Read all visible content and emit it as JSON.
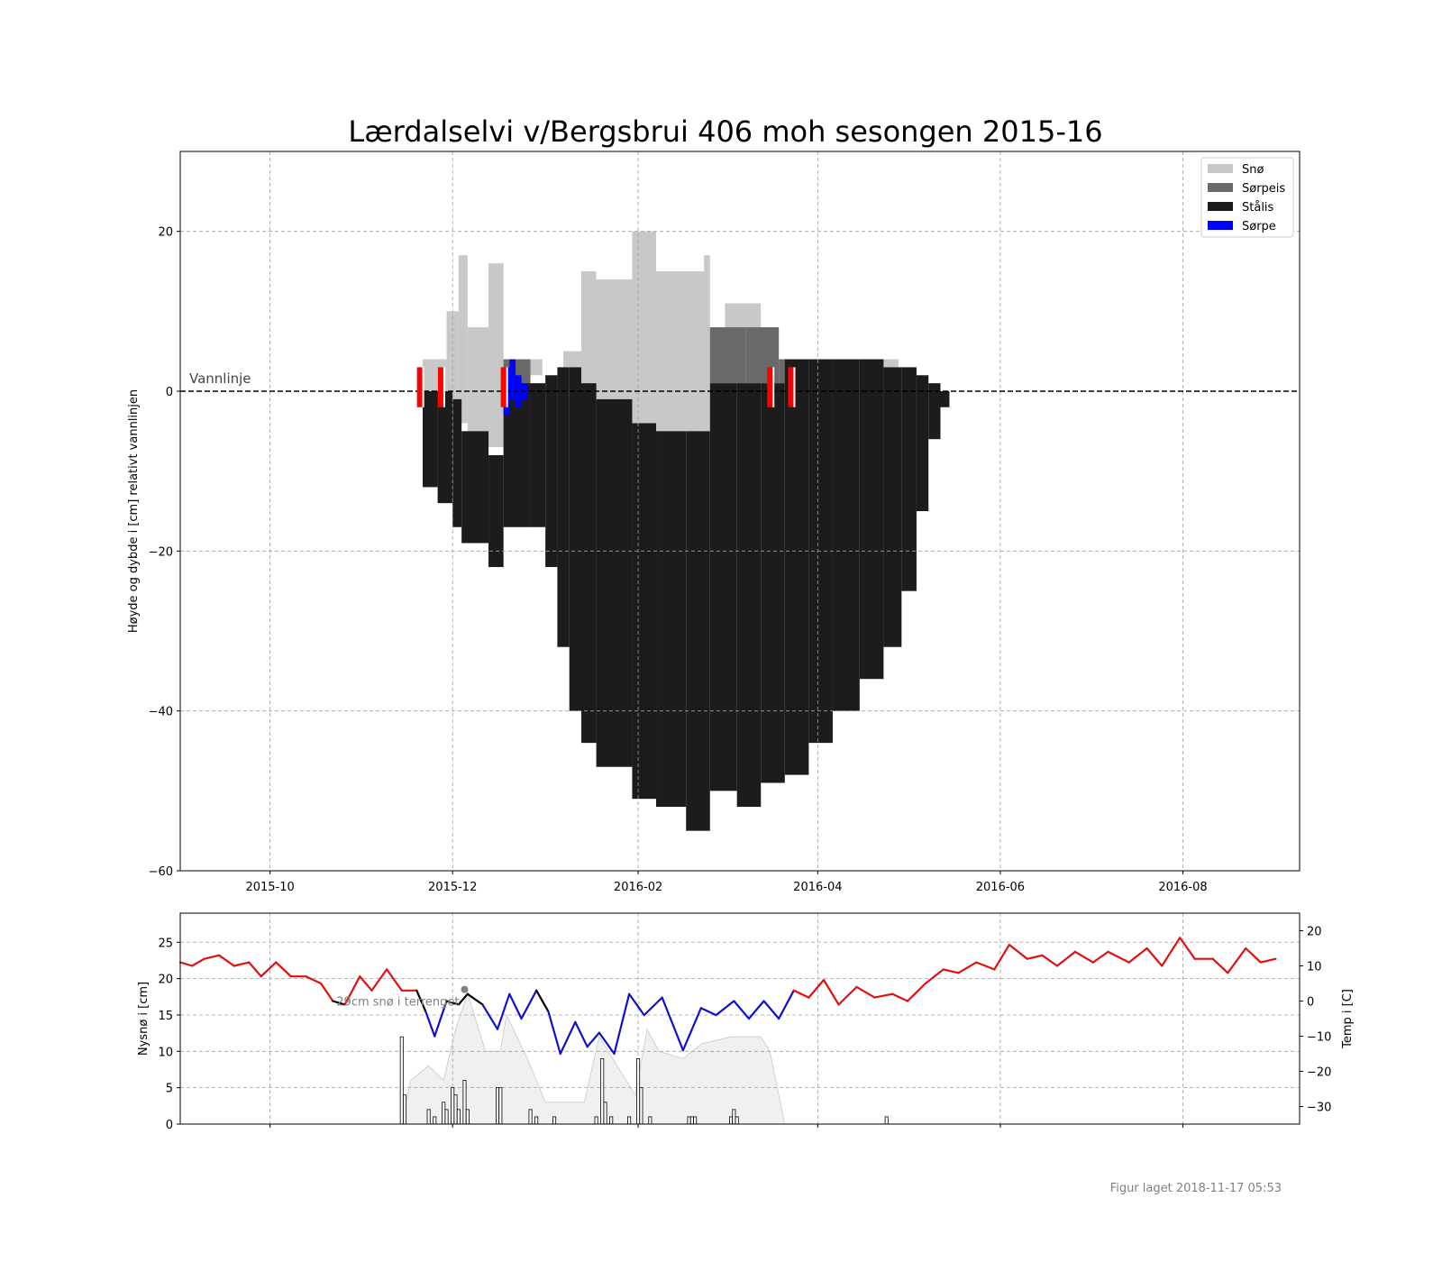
{
  "colors": {
    "sno": "#c8c8c8",
    "sorpeis": "#696969",
    "stalis": "#1c1c1c",
    "sorpe": "#0000ff",
    "obs_marker": "#ff0000",
    "temp_warm": "#e01010",
    "temp_cold": "#1010cc",
    "temp_zero": "#000000",
    "snow_depth_fill": "#f0f0f0",
    "grid": "#a0a0a0"
  },
  "chart_data": [
    {
      "type": "bar",
      "title": "Lærdalselvi v/Bergsbrui 406 moh sesongen 2015-16",
      "ylabel": "Høyde og dybde i [cm] relativt vannlinjen",
      "xlabel": "",
      "x_range": [
        "2015-09-01",
        "2016-09-09"
      ],
      "ylim": [
        -60,
        30
      ],
      "yticks": [
        20,
        0,
        -20,
        -40,
        -60
      ],
      "xtick_labels": [
        "2015-10",
        "2015-12",
        "2016-02",
        "2016-04",
        "2016-06",
        "2016-08"
      ],
      "xtick_dates": [
        "2015-10-01",
        "2015-12-01",
        "2016-02-01",
        "2016-04-01",
        "2016-06-01",
        "2016-08-01"
      ],
      "grid": true,
      "legend_position": "top-right",
      "legend": [
        "Snø",
        "Sørpeis",
        "Stålis",
        "Sørpe"
      ],
      "waterline": {
        "y": 0,
        "label": "Vannlinje"
      },
      "observation_dates": [
        "2015-11-20",
        "2015-11-27",
        "2015-12-18",
        "2016-03-16",
        "2016-03-23"
      ],
      "snow_layer": [
        {
          "from": "2015-11-21",
          "to": "2015-11-29",
          "bottom": 0,
          "top": 4
        },
        {
          "from": "2015-11-29",
          "to": "2015-12-03",
          "bottom": -1,
          "top": 10
        },
        {
          "from": "2015-12-03",
          "to": "2015-12-06",
          "bottom": -4,
          "top": 17
        },
        {
          "from": "2015-12-06",
          "to": "2015-12-13",
          "bottom": -5,
          "top": 8
        },
        {
          "from": "2015-12-13",
          "to": "2015-12-18",
          "bottom": -7,
          "top": 16
        },
        {
          "from": "2015-12-22",
          "to": "2015-12-31",
          "bottom": 2,
          "top": 4
        },
        {
          "from": "2016-01-07",
          "to": "2016-01-13",
          "bottom": 3,
          "top": 5
        },
        {
          "from": "2016-01-13",
          "to": "2016-01-18",
          "bottom": 1,
          "top": 15
        },
        {
          "from": "2016-01-18",
          "to": "2016-01-30",
          "bottom": -1,
          "top": 14
        },
        {
          "from": "2016-01-30",
          "to": "2016-02-07",
          "bottom": -4,
          "top": 20
        },
        {
          "from": "2016-02-07",
          "to": "2016-02-23",
          "bottom": -5,
          "top": 15
        },
        {
          "from": "2016-02-23",
          "to": "2016-02-25",
          "bottom": -5,
          "top": 17
        },
        {
          "from": "2016-03-01",
          "to": "2016-03-13",
          "bottom": 8,
          "top": 11
        },
        {
          "from": "2016-04-23",
          "to": "2016-04-28",
          "bottom": 3,
          "top": 4
        }
      ],
      "sorpeis_layer": [
        {
          "from": "2015-12-18",
          "to": "2015-12-27",
          "bottom": 1,
          "top": 4
        },
        {
          "from": "2016-02-25",
          "to": "2016-03-08",
          "bottom": 1,
          "top": 8
        },
        {
          "from": "2016-03-08",
          "to": "2016-03-19",
          "bottom": 1,
          "top": 8
        },
        {
          "from": "2016-03-19",
          "to": "2016-03-26",
          "bottom": 1,
          "top": 4
        }
      ],
      "stalis_layer": [
        {
          "from": "2015-11-21",
          "to": "2015-11-26",
          "bottom": -12,
          "top": 0
        },
        {
          "from": "2015-11-26",
          "to": "2015-12-01",
          "bottom": -14,
          "top": 0
        },
        {
          "from": "2015-12-01",
          "to": "2015-12-04",
          "bottom": -17,
          "top": -1
        },
        {
          "from": "2015-12-04",
          "to": "2015-12-13",
          "bottom": -19,
          "top": -5
        },
        {
          "from": "2015-12-13",
          "to": "2015-12-18",
          "bottom": -22,
          "top": -8
        },
        {
          "from": "2015-12-18",
          "to": "2015-12-27",
          "bottom": -17,
          "top": 1
        },
        {
          "from": "2015-12-27",
          "to": "2016-01-01",
          "bottom": -17,
          "top": 1
        },
        {
          "from": "2016-01-01",
          "to": "2016-01-05",
          "bottom": -22,
          "top": 2
        },
        {
          "from": "2016-01-05",
          "to": "2016-01-09",
          "bottom": -32,
          "top": 3
        },
        {
          "from": "2016-01-09",
          "to": "2016-01-13",
          "bottom": -40,
          "top": 3
        },
        {
          "from": "2016-01-13",
          "to": "2016-01-18",
          "bottom": -44,
          "top": 1
        },
        {
          "from": "2016-01-18",
          "to": "2016-01-30",
          "bottom": -47,
          "top": -1
        },
        {
          "from": "2016-01-30",
          "to": "2016-02-07",
          "bottom": -51,
          "top": -4
        },
        {
          "from": "2016-02-07",
          "to": "2016-02-17",
          "bottom": -52,
          "top": -5
        },
        {
          "from": "2016-02-17",
          "to": "2016-02-25",
          "bottom": -55,
          "top": -5
        },
        {
          "from": "2016-02-25",
          "to": "2016-03-05",
          "bottom": -50,
          "top": 1
        },
        {
          "from": "2016-03-05",
          "to": "2016-03-13",
          "bottom": -52,
          "top": 1
        },
        {
          "from": "2016-03-13",
          "to": "2016-03-21",
          "bottom": -49,
          "top": 1
        },
        {
          "from": "2016-03-21",
          "to": "2016-03-29",
          "bottom": -48,
          "top": 4
        },
        {
          "from": "2016-03-29",
          "to": "2016-04-06",
          "bottom": -44,
          "top": 4
        },
        {
          "from": "2016-04-06",
          "to": "2016-04-15",
          "bottom": -40,
          "top": 4
        },
        {
          "from": "2016-04-15",
          "to": "2016-04-23",
          "bottom": -36,
          "top": 4
        },
        {
          "from": "2016-04-23",
          "to": "2016-04-29",
          "bottom": -32,
          "top": 3
        },
        {
          "from": "2016-04-29",
          "to": "2016-05-04",
          "bottom": -25,
          "top": 3
        },
        {
          "from": "2016-05-04",
          "to": "2016-05-08",
          "bottom": -15,
          "top": 2
        },
        {
          "from": "2016-05-08",
          "to": "2016-05-12",
          "bottom": -6,
          "top": 1
        },
        {
          "from": "2016-05-12",
          "to": "2016-05-15",
          "bottom": -2,
          "top": 0
        }
      ],
      "sorpe_layer": [
        {
          "from": "2015-12-18",
          "to": "2015-12-20",
          "bottom": -3,
          "top": 3
        },
        {
          "from": "2015-12-20",
          "to": "2015-12-22",
          "bottom": -1,
          "top": 4
        },
        {
          "from": "2015-12-22",
          "to": "2015-12-24",
          "bottom": -2,
          "top": 2
        },
        {
          "from": "2015-12-24",
          "to": "2015-12-26",
          "bottom": -1,
          "top": 1
        }
      ]
    },
    {
      "type": "bar",
      "xlabel": "",
      "ylabel": "Nysnø i [cm]",
      "ylabel_right": "Temp i [C]",
      "ylim": [
        0,
        29
      ],
      "yticks": [
        0,
        5,
        10,
        15,
        20,
        25
      ],
      "ylim_right": [
        -35,
        25
      ],
      "yticks_right": [
        -30,
        -20,
        -10,
        0,
        10,
        20
      ],
      "x_range": [
        "2015-09-01",
        "2016-09-09"
      ],
      "annotation": {
        "date": "2015-12-05",
        "text": "29cm snø i terrenget"
      },
      "new_snow": [
        {
          "x": "2015-11-14",
          "value": 12
        },
        {
          "x": "2015-11-15",
          "value": 4
        },
        {
          "x": "2015-11-23",
          "value": 2
        },
        {
          "x": "2015-11-25",
          "value": 1
        },
        {
          "x": "2015-11-28",
          "value": 3
        },
        {
          "x": "2015-11-29",
          "value": 2
        },
        {
          "x": "2015-12-01",
          "value": 5
        },
        {
          "x": "2015-12-02",
          "value": 4
        },
        {
          "x": "2015-12-03",
          "value": 2
        },
        {
          "x": "2015-12-05",
          "value": 6
        },
        {
          "x": "2015-12-06",
          "value": 2
        },
        {
          "x": "2015-12-16",
          "value": 5
        },
        {
          "x": "2015-12-17",
          "value": 5
        },
        {
          "x": "2015-12-27",
          "value": 2
        },
        {
          "x": "2015-12-29",
          "value": 1
        },
        {
          "x": "2016-01-04",
          "value": 1
        },
        {
          "x": "2016-01-18",
          "value": 1
        },
        {
          "x": "2016-01-20",
          "value": 9
        },
        {
          "x": "2016-01-21",
          "value": 3
        },
        {
          "x": "2016-01-23",
          "value": 1
        },
        {
          "x": "2016-01-29",
          "value": 1
        },
        {
          "x": "2016-02-01",
          "value": 9
        },
        {
          "x": "2016-02-02",
          "value": 5
        },
        {
          "x": "2016-02-05",
          "value": 1
        },
        {
          "x": "2016-02-18",
          "value": 1
        },
        {
          "x": "2016-02-19",
          "value": 1
        },
        {
          "x": "2016-02-20",
          "value": 1
        },
        {
          "x": "2016-03-03",
          "value": 1
        },
        {
          "x": "2016-03-04",
          "value": 2
        },
        {
          "x": "2016-03-05",
          "value": 1
        },
        {
          "x": "2016-04-24",
          "value": 1
        }
      ],
      "snow_depth_area": [
        {
          "x": "2015-11-14",
          "value": 0
        },
        {
          "x": "2015-11-17",
          "value": 6
        },
        {
          "x": "2015-11-23",
          "value": 8
        },
        {
          "x": "2015-11-28",
          "value": 6
        },
        {
          "x": "2015-12-02",
          "value": 13
        },
        {
          "x": "2015-12-06",
          "value": 18
        },
        {
          "x": "2015-12-12",
          "value": 10
        },
        {
          "x": "2015-12-17",
          "value": 10
        },
        {
          "x": "2015-12-19",
          "value": 15
        },
        {
          "x": "2015-12-26",
          "value": 9
        },
        {
          "x": "2016-01-01",
          "value": 3
        },
        {
          "x": "2016-01-14",
          "value": 3
        },
        {
          "x": "2016-01-19",
          "value": 12
        },
        {
          "x": "2016-01-25",
          "value": 8
        },
        {
          "x": "2016-01-31",
          "value": 4
        },
        {
          "x": "2016-02-04",
          "value": 13
        },
        {
          "x": "2016-02-08",
          "value": 10
        },
        {
          "x": "2016-02-16",
          "value": 9
        },
        {
          "x": "2016-02-22",
          "value": 11
        },
        {
          "x": "2016-03-03",
          "value": 12
        },
        {
          "x": "2016-03-13",
          "value": 12
        },
        {
          "x": "2016-03-16",
          "value": 10
        },
        {
          "x": "2016-03-21",
          "value": 0
        }
      ],
      "temperature": [
        {
          "x": "2015-09-01",
          "value": 11
        },
        {
          "x": "2015-09-05",
          "value": 10
        },
        {
          "x": "2015-09-09",
          "value": 12
        },
        {
          "x": "2015-09-14",
          "value": 13
        },
        {
          "x": "2015-09-19",
          "value": 10
        },
        {
          "x": "2015-09-24",
          "value": 11
        },
        {
          "x": "2015-09-28",
          "value": 7
        },
        {
          "x": "2015-10-03",
          "value": 11
        },
        {
          "x": "2015-10-08",
          "value": 7
        },
        {
          "x": "2015-10-13",
          "value": 7
        },
        {
          "x": "2015-10-18",
          "value": 5
        },
        {
          "x": "2015-10-22",
          "value": 0
        },
        {
          "x": "2015-10-26",
          "value": -1
        },
        {
          "x": "2015-10-31",
          "value": 7
        },
        {
          "x": "2015-11-04",
          "value": 3
        },
        {
          "x": "2015-11-09",
          "value": 9
        },
        {
          "x": "2015-11-14",
          "value": 3
        },
        {
          "x": "2015-11-19",
          "value": 3
        },
        {
          "x": "2015-11-22",
          "value": -3
        },
        {
          "x": "2015-11-25",
          "value": -10
        },
        {
          "x": "2015-11-29",
          "value": 0
        },
        {
          "x": "2015-12-03",
          "value": -1
        },
        {
          "x": "2015-12-06",
          "value": 2
        },
        {
          "x": "2015-12-11",
          "value": -1
        },
        {
          "x": "2015-12-16",
          "value": -8
        },
        {
          "x": "2015-12-20",
          "value": 2
        },
        {
          "x": "2015-12-24",
          "value": -5
        },
        {
          "x": "2015-12-29",
          "value": 3
        },
        {
          "x": "2016-01-02",
          "value": -3
        },
        {
          "x": "2016-01-06",
          "value": -15
        },
        {
          "x": "2016-01-11",
          "value": -6
        },
        {
          "x": "2016-01-15",
          "value": -13
        },
        {
          "x": "2016-01-19",
          "value": -9
        },
        {
          "x": "2016-01-24",
          "value": -15
        },
        {
          "x": "2016-01-29",
          "value": 2
        },
        {
          "x": "2016-02-03",
          "value": -4
        },
        {
          "x": "2016-02-09",
          "value": 1
        },
        {
          "x": "2016-02-16",
          "value": -14
        },
        {
          "x": "2016-02-22",
          "value": -2
        },
        {
          "x": "2016-02-27",
          "value": -4
        },
        {
          "x": "2016-03-04",
          "value": 0
        },
        {
          "x": "2016-03-09",
          "value": -5
        },
        {
          "x": "2016-03-14",
          "value": 0
        },
        {
          "x": "2016-03-19",
          "value": -5
        },
        {
          "x": "2016-03-24",
          "value": 3
        },
        {
          "x": "2016-03-29",
          "value": 1
        },
        {
          "x": "2016-04-03",
          "value": 6
        },
        {
          "x": "2016-04-08",
          "value": -1
        },
        {
          "x": "2016-04-14",
          "value": 4
        },
        {
          "x": "2016-04-20",
          "value": 1
        },
        {
          "x": "2016-04-26",
          "value": 2
        },
        {
          "x": "2016-05-01",
          "value": 0
        },
        {
          "x": "2016-05-07",
          "value": 5
        },
        {
          "x": "2016-05-13",
          "value": 9
        },
        {
          "x": "2016-05-18",
          "value": 8
        },
        {
          "x": "2016-05-24",
          "value": 11
        },
        {
          "x": "2016-05-30",
          "value": 9
        },
        {
          "x": "2016-06-04",
          "value": 16
        },
        {
          "x": "2016-06-10",
          "value": 12
        },
        {
          "x": "2016-06-15",
          "value": 13
        },
        {
          "x": "2016-06-20",
          "value": 10
        },
        {
          "x": "2016-06-26",
          "value": 14
        },
        {
          "x": "2016-07-02",
          "value": 11
        },
        {
          "x": "2016-07-07",
          "value": 14
        },
        {
          "x": "2016-07-14",
          "value": 11
        },
        {
          "x": "2016-07-20",
          "value": 15
        },
        {
          "x": "2016-07-25",
          "value": 10
        },
        {
          "x": "2016-07-31",
          "value": 18
        },
        {
          "x": "2016-08-05",
          "value": 12
        },
        {
          "x": "2016-08-11",
          "value": 12
        },
        {
          "x": "2016-08-16",
          "value": 8
        },
        {
          "x": "2016-08-22",
          "value": 15
        },
        {
          "x": "2016-08-27",
          "value": 11
        },
        {
          "x": "2016-09-01",
          "value": 12
        }
      ]
    }
  ],
  "footer": {
    "created_label": "Figur laget 2018-11-17 05:53"
  }
}
